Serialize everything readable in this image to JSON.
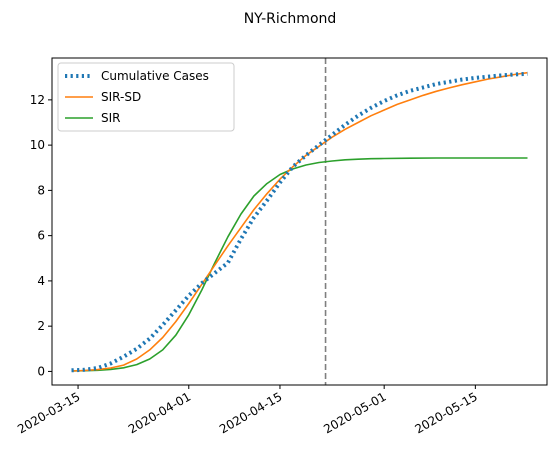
{
  "chart_data": {
    "type": "line",
    "title": "NY-Richmond",
    "xlabel": "",
    "ylabel": "",
    "xlim": [
      "2020-03-11",
      "2020-05-26"
    ],
    "ylim": [
      -0.6,
      13.85
    ],
    "x_ticks": [
      "2020-03-15",
      "2020-04-01",
      "2020-04-15",
      "2020-05-01",
      "2020-05-15"
    ],
    "y_ticks": [
      0,
      2,
      4,
      6,
      8,
      10,
      12
    ],
    "grid": false,
    "legend": "top-left",
    "vline": {
      "x": "2020-04-22",
      "color": "#7f7f7f",
      "style": "dashed"
    },
    "series": [
      {
        "name": "Cumulative Cases",
        "color": "#1f77b4",
        "style": "dotted",
        "x": [
          "2020-03-14",
          "2020-03-16",
          "2020-03-18",
          "2020-03-20",
          "2020-03-22",
          "2020-03-24",
          "2020-03-26",
          "2020-03-28",
          "2020-03-30",
          "2020-04-01",
          "2020-04-03",
          "2020-04-05",
          "2020-04-07",
          "2020-04-09",
          "2020-04-11",
          "2020-04-13",
          "2020-04-15",
          "2020-04-17",
          "2020-04-19",
          "2020-04-21",
          "2020-04-23",
          "2020-04-25",
          "2020-04-27",
          "2020-04-29",
          "2020-05-01",
          "2020-05-03",
          "2020-05-05",
          "2020-05-07",
          "2020-05-09",
          "2020-05-11",
          "2020-05-13",
          "2020-05-15",
          "2020-05-17",
          "2020-05-19",
          "2020-05-21",
          "2020-05-23"
        ],
        "y": [
          0.05,
          0.07,
          0.15,
          0.35,
          0.65,
          1.0,
          1.45,
          2.05,
          2.7,
          3.35,
          3.9,
          4.35,
          4.8,
          5.85,
          6.8,
          7.55,
          8.35,
          9.05,
          9.55,
          10.0,
          10.45,
          10.9,
          11.3,
          11.65,
          11.95,
          12.2,
          12.4,
          12.55,
          12.7,
          12.8,
          12.9,
          12.97,
          13.03,
          13.08,
          13.12,
          13.15
        ]
      },
      {
        "name": "SIR-SD",
        "color": "#ff7f0e",
        "style": "solid",
        "x": [
          "2020-03-14",
          "2020-03-16",
          "2020-03-18",
          "2020-03-20",
          "2020-03-22",
          "2020-03-24",
          "2020-03-26",
          "2020-03-28",
          "2020-03-30",
          "2020-04-01",
          "2020-04-03",
          "2020-04-05",
          "2020-04-07",
          "2020-04-09",
          "2020-04-11",
          "2020-04-13",
          "2020-04-15",
          "2020-04-17",
          "2020-04-19",
          "2020-04-21",
          "2020-04-23",
          "2020-04-25",
          "2020-04-27",
          "2020-04-29",
          "2020-05-01",
          "2020-05-03",
          "2020-05-05",
          "2020-05-07",
          "2020-05-09",
          "2020-05-11",
          "2020-05-13",
          "2020-05-15",
          "2020-05-17",
          "2020-05-19",
          "2020-05-21",
          "2020-05-23"
        ],
        "y": [
          0.02,
          0.04,
          0.08,
          0.15,
          0.28,
          0.55,
          0.95,
          1.5,
          2.2,
          3.0,
          3.85,
          4.7,
          5.55,
          6.35,
          7.15,
          7.85,
          8.5,
          9.05,
          9.55,
          9.95,
          10.35,
          10.7,
          11.0,
          11.3,
          11.55,
          11.8,
          12.0,
          12.2,
          12.38,
          12.53,
          12.67,
          12.8,
          12.92,
          13.02,
          13.12,
          13.2
        ]
      },
      {
        "name": "SIR",
        "color": "#2ca02c",
        "style": "solid",
        "x": [
          "2020-03-14",
          "2020-03-16",
          "2020-03-18",
          "2020-03-20",
          "2020-03-22",
          "2020-03-24",
          "2020-03-26",
          "2020-03-28",
          "2020-03-30",
          "2020-04-01",
          "2020-04-03",
          "2020-04-05",
          "2020-04-07",
          "2020-04-09",
          "2020-04-11",
          "2020-04-13",
          "2020-04-15",
          "2020-04-17",
          "2020-04-19",
          "2020-04-21",
          "2020-04-23",
          "2020-04-25",
          "2020-04-27",
          "2020-04-29",
          "2020-05-01",
          "2020-05-05",
          "2020-05-09",
          "2020-05-13",
          "2020-05-17",
          "2020-05-23"
        ],
        "y": [
          0.02,
          0.03,
          0.05,
          0.09,
          0.16,
          0.3,
          0.55,
          0.95,
          1.6,
          2.5,
          3.6,
          4.8,
          5.95,
          6.95,
          7.75,
          8.3,
          8.7,
          8.95,
          9.12,
          9.23,
          9.3,
          9.35,
          9.38,
          9.4,
          9.41,
          9.42,
          9.43,
          9.43,
          9.43,
          9.43
        ]
      }
    ]
  }
}
